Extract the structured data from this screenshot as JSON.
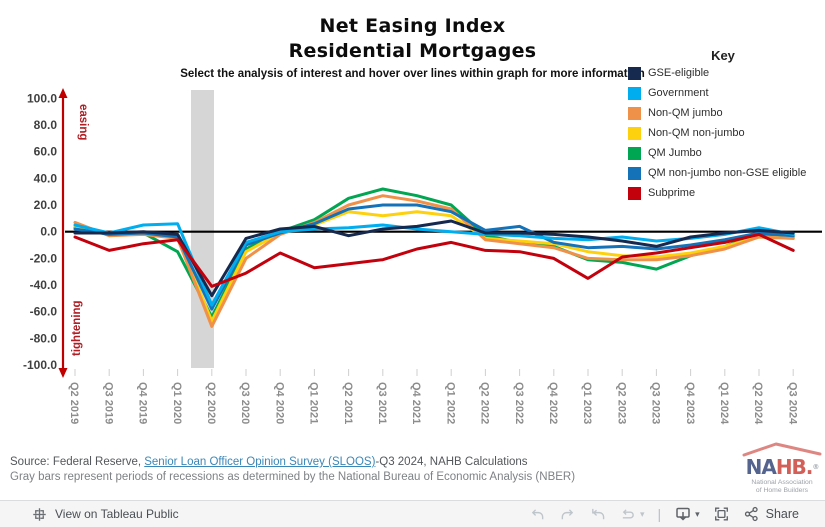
{
  "header": {
    "title_line1": "Net Easing Index",
    "title_line2": "Residential Mortgages",
    "subtitle": "Select the analysis of interest and hover over lines within graph for more information"
  },
  "legend": {
    "title": "Key",
    "items": [
      {
        "label": "GSE-eligible",
        "color": "#16294e"
      },
      {
        "label": "Government",
        "color": "#00aeef"
      },
      {
        "label": "Non-QM jumbo",
        "color": "#f0914a"
      },
      {
        "label": "Non-QM non-jumbo",
        "color": "#fdd10e"
      },
      {
        "label": "QM Jumbo",
        "color": "#00a651"
      },
      {
        "label": "QM non-jumbo non-GSE eligible",
        "color": "#1472b9"
      },
      {
        "label": "Subprime",
        "color": "#c2010d"
      }
    ]
  },
  "chart_data": {
    "type": "line",
    "title": "Net Easing Index - Residential Mortgages",
    "xlabel": "",
    "ylabel": "Net easing index",
    "ylim": [
      -100,
      100
    ],
    "grid": false,
    "legend_position": "top-right",
    "y_tick_labels": [
      "100.0",
      "80.0",
      "60.0",
      "40.0",
      "20.0",
      "0.0",
      "-20.0",
      "-40.0",
      "-60.0",
      "-80.0",
      "-100.0"
    ],
    "y_tick_values": [
      100,
      80,
      60,
      40,
      20,
      0,
      -20,
      -40,
      -60,
      -80,
      -100
    ],
    "axis_annotations": {
      "top": "easing",
      "bottom": "tightening",
      "color": "#b01e24"
    },
    "zero_line": true,
    "recession_band": {
      "from": "Q1 2020",
      "to": "Q2 2020",
      "color": "#d6d6d6"
    },
    "categories": [
      "Q2 2019",
      "Q3 2019",
      "Q4 2019",
      "Q1 2020",
      "Q2 2020",
      "Q3 2020",
      "Q4 2020",
      "Q1 2021",
      "Q2 2021",
      "Q3 2021",
      "Q4 2021",
      "Q1 2022",
      "Q2 2022",
      "Q3 2022",
      "Q4 2022",
      "Q1 2023",
      "Q2 2023",
      "Q3 2023",
      "Q4 2023",
      "Q1 2024",
      "Q2 2024",
      "Q3 2024"
    ],
    "series": [
      {
        "name": "GSE-eligible",
        "color": "#16294e",
        "values": [
          -1,
          -1,
          0,
          -2,
          -48,
          -5,
          2,
          4,
          -3,
          2,
          4,
          8,
          -1,
          -1,
          -2,
          -4,
          -7,
          -11,
          -4,
          -1,
          1,
          -1
        ]
      },
      {
        "name": "Government",
        "color": "#00aeef",
        "values": [
          5,
          -1,
          5,
          6,
          -55,
          -8,
          0,
          2,
          3,
          5,
          2,
          0,
          -2,
          -3,
          -5,
          -6,
          -4,
          -7,
          -5,
          -2,
          3,
          -2
        ]
      },
      {
        "name": "Non-QM jumbo",
        "color": "#f0914a",
        "values": [
          7,
          -3,
          -2,
          -5,
          -71,
          -20,
          -2,
          7,
          20,
          27,
          23,
          17,
          -6,
          -9,
          -12,
          -20,
          -21,
          -21,
          -18,
          -13,
          -4,
          -5
        ]
      },
      {
        "name": "Non-QM non-jumbo",
        "color": "#fdd10e",
        "values": [
          4,
          -2,
          -1,
          -4,
          -67,
          -15,
          -1,
          5,
          15,
          12,
          15,
          12,
          -5,
          -7,
          -9,
          -15,
          -18,
          -19,
          -16,
          -11,
          -4,
          -5
        ]
      },
      {
        "name": "QM Jumbo",
        "color": "#00a651",
        "values": [
          3,
          -2,
          -1,
          -15,
          -64,
          -13,
          0,
          9,
          25,
          32,
          27,
          20,
          -3,
          -8,
          -11,
          -21,
          -23,
          -28,
          -18,
          -11,
          -2,
          -4
        ]
      },
      {
        "name": "QM non-jumbo non-GSE eligible",
        "color": "#1472b9",
        "values": [
          2,
          -2,
          -1,
          -4,
          -58,
          -10,
          -1,
          6,
          17,
          20,
          20,
          15,
          1,
          4,
          -8,
          -12,
          -11,
          -13,
          -10,
          -6,
          -1,
          -3
        ]
      },
      {
        "name": "Subprime",
        "color": "#c2010d",
        "values": [
          -4,
          -14,
          -9,
          -6,
          -41,
          -31,
          -16,
          -27,
          -24,
          -21,
          -13,
          -8,
          -14,
          -15,
          -20,
          -35,
          -19,
          -16,
          -12,
          -8,
          -2,
          -14
        ]
      }
    ],
    "draw_order": [
      4,
      3,
      2,
      5,
      1,
      0,
      6
    ]
  },
  "source": {
    "prefix": "Source: Federal Reserve, ",
    "link_text": "Senior Loan Officer Opinion Survey (SLOOS)",
    "suffix": "-Q3 2024, NAHB Calculations",
    "note": "Gray bars represent periods of recessions as determined by the National Bureau of Economic Analysis (NBER)"
  },
  "logo": {
    "word_part1": "NA",
    "word_part2": "HB.",
    "registered": "®",
    "sub_line1": "National Association",
    "sub_line2": "of Home Builders"
  },
  "toolbar": {
    "view_label": "View on Tableau Public",
    "share_label": "Share",
    "caret": "▾",
    "separator": "|"
  }
}
